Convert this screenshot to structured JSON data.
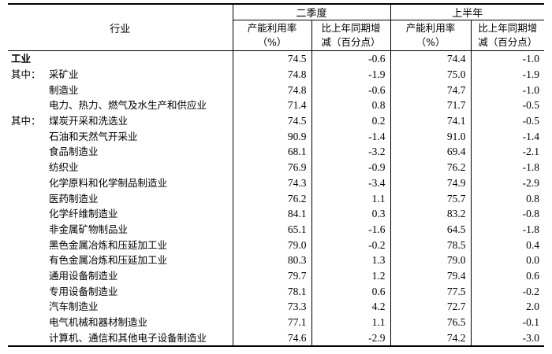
{
  "header": {
    "industry": "行业",
    "q2": "二季度",
    "h1": "上半年",
    "rate": "产能利用率",
    "rate_unit": "（%）",
    "change": "比上年同期增",
    "change_unit": "减（百分点）"
  },
  "rows": [
    {
      "prefix": "",
      "name": "工业",
      "bold": true,
      "q2_rate": "74.5",
      "q2_change": "-0.6",
      "h1_rate": "74.4",
      "h1_change": "-1.0"
    },
    {
      "prefix": "其中：",
      "name": "采矿业",
      "q2_rate": "74.8",
      "q2_change": "-1.9",
      "h1_rate": "75.0",
      "h1_change": "-1.9"
    },
    {
      "prefix": "",
      "name": "制造业",
      "q2_rate": "74.8",
      "q2_change": "-0.6",
      "h1_rate": "74.7",
      "h1_change": "-1.0"
    },
    {
      "prefix": "",
      "name": "电力、热力、燃气及水生产和供应业",
      "q2_rate": "71.4",
      "q2_change": "0.8",
      "h1_rate": "71.7",
      "h1_change": "-0.5"
    },
    {
      "prefix": "其中：",
      "name": "煤炭开采和洗选业",
      "q2_rate": "74.5",
      "q2_change": "0.2",
      "h1_rate": "74.1",
      "h1_change": "-0.5"
    },
    {
      "prefix": "",
      "name": "石油和天然气开采业",
      "q2_rate": "90.9",
      "q2_change": "-1.4",
      "h1_rate": "91.0",
      "h1_change": "-1.4"
    },
    {
      "prefix": "",
      "name": "食品制造业",
      "q2_rate": "68.1",
      "q2_change": "-3.2",
      "h1_rate": "69.4",
      "h1_change": "-2.1"
    },
    {
      "prefix": "",
      "name": "纺织业",
      "q2_rate": "76.9",
      "q2_change": "-0.9",
      "h1_rate": "76.2",
      "h1_change": "-1.8"
    },
    {
      "prefix": "",
      "name": "化学原料和化学制品制造业",
      "q2_rate": "74.3",
      "q2_change": "-3.4",
      "h1_rate": "74.9",
      "h1_change": "-2.9"
    },
    {
      "prefix": "",
      "name": "医药制造业",
      "q2_rate": "76.2",
      "q2_change": "1.1",
      "h1_rate": "75.7",
      "h1_change": "0.8"
    },
    {
      "prefix": "",
      "name": "化学纤维制造业",
      "q2_rate": "84.1",
      "q2_change": "0.3",
      "h1_rate": "83.2",
      "h1_change": "-0.8"
    },
    {
      "prefix": "",
      "name": "非金属矿物制品业",
      "q2_rate": "65.1",
      "q2_change": "-1.6",
      "h1_rate": "64.5",
      "h1_change": "-1.8"
    },
    {
      "prefix": "",
      "name": "黑色金属冶炼和压延加工业",
      "q2_rate": "79.0",
      "q2_change": "-0.2",
      "h1_rate": "78.5",
      "h1_change": "0.4"
    },
    {
      "prefix": "",
      "name": "有色金属冶炼和压延加工业",
      "q2_rate": "80.3",
      "q2_change": "1.3",
      "h1_rate": "79.0",
      "h1_change": "0.0"
    },
    {
      "prefix": "",
      "name": "通用设备制造业",
      "q2_rate": "79.7",
      "q2_change": "1.2",
      "h1_rate": "79.4",
      "h1_change": "0.6"
    },
    {
      "prefix": "",
      "name": "专用设备制造业",
      "q2_rate": "78.1",
      "q2_change": "0.6",
      "h1_rate": "77.5",
      "h1_change": "-0.2"
    },
    {
      "prefix": "",
      "name": "汽车制造业",
      "q2_rate": "73.3",
      "q2_change": "4.2",
      "h1_rate": "72.7",
      "h1_change": "2.0"
    },
    {
      "prefix": "",
      "name": "电气机械和器材制造业",
      "q2_rate": "77.1",
      "q2_change": "1.1",
      "h1_rate": "76.5",
      "h1_change": "-0.1"
    },
    {
      "prefix": "",
      "name": "计算机、通信和其他电子设备制造业",
      "q2_rate": "74.6",
      "q2_change": "-2.9",
      "h1_rate": "74.2",
      "h1_change": "-3.0"
    }
  ]
}
